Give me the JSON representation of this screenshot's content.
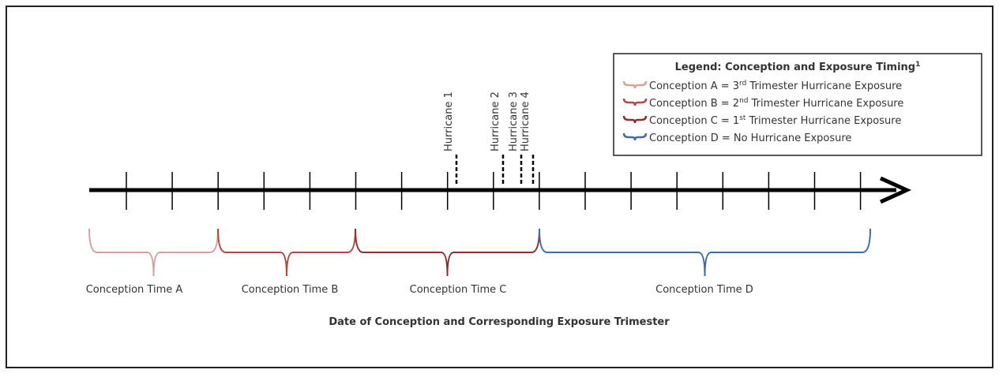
{
  "legend": {
    "title": "Legend: Conception and Exposure Timing",
    "title_sup": "1",
    "items": [
      {
        "prefix": "Conception A = 3",
        "sup": "rd",
        "suffix": " Trimester Hurricane Exposure"
      },
      {
        "prefix": "Conception B = 2",
        "sup": "nd",
        "suffix": " Trimester Hurricane Exposure"
      },
      {
        "prefix": "Conception C = 1",
        "sup": "st",
        "suffix": " Trimester Hurricane Exposure"
      },
      {
        "prefix": "Conception D = No Hurricane Exposure",
        "sup": "",
        "suffix": ""
      }
    ]
  },
  "hurricanes": [
    "Hurricane 1",
    "Hurricane 2",
    "Hurricane 3",
    "Hurricane 4"
  ],
  "periods": [
    "Conception Time A",
    "Conception Time B",
    "Conception Time C",
    "Conception Time D"
  ],
  "axis_title": "Date of Conception and Corresponding Exposure Trimester"
}
